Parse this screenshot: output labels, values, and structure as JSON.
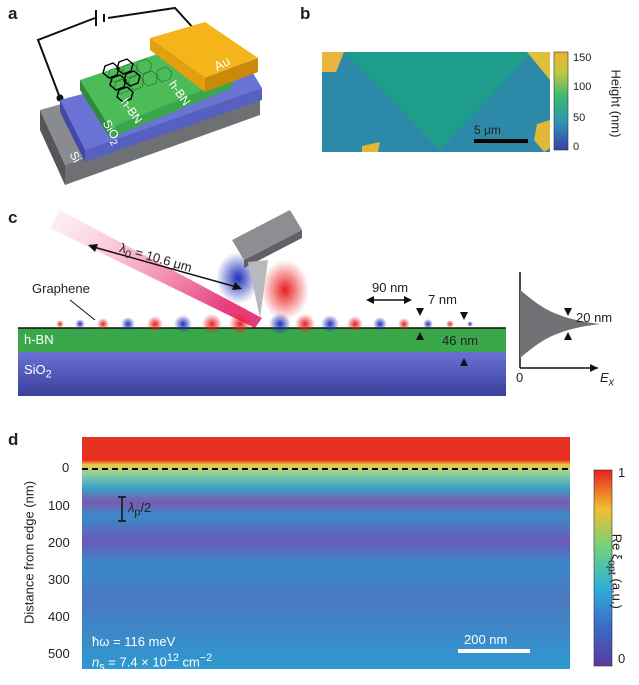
{
  "panels": {
    "a": {
      "letter": "a",
      "layers": {
        "au": "Au",
        "hbn_top": "h-BN",
        "hbn_bottom": "h-BN",
        "sio2": "SiO",
        "sio2_sub": "2",
        "si": "Si"
      }
    },
    "b": {
      "letter": "b",
      "colorbar_title": "Height (nm)",
      "colorbar_ticks": [
        "150",
        "100",
        "50",
        "0"
      ],
      "scale_bar": "5 μm"
    },
    "c": {
      "letter": "c",
      "wavelength": "λ",
      "wavelength_sub": "0",
      "wavelength_value": " = 10.6 μm",
      "graphene": "Graphene",
      "hbn": "h-BN",
      "sio2": "SiO",
      "sio2_sub": "2",
      "d_90": "90 nm",
      "d_7": "7 nm",
      "d_46": "46 nm",
      "d_20": "20 nm",
      "inset_zero": "0",
      "inset_axis": "E",
      "inset_axis_sub": "x"
    },
    "d": {
      "letter": "d",
      "ylabel": "Distance from edge (nm)",
      "yticks": [
        "0",
        "100",
        "200",
        "300",
        "400",
        "500"
      ],
      "colorbar_label": "Re ξ",
      "colorbar_label_sub": "opt",
      "colorbar_label_unit": " (a.u.)",
      "colorbar_max": "1",
      "colorbar_min": "0",
      "plasmon_label": "λ",
      "plasmon_sub": "p",
      "plasmon_suffix": "/2",
      "energy": "ħω = 116 meV",
      "density_n": "n",
      "density_sub": "s",
      "density_value": " = 7.4 × 10",
      "density_exp": "12",
      "density_unit": " cm",
      "density_unit_exp": "−2",
      "scale_bar": "200 nm"
    }
  },
  "colors": {
    "gold": "#f4b41a",
    "hbn_green": "#3aa84a",
    "sio2_blue": "#5b63c8",
    "si_grey": "#6f7074",
    "field_red": "#e0202a",
    "field_blue": "#2a3bb0",
    "laser_pink": "#f05a8e"
  }
}
